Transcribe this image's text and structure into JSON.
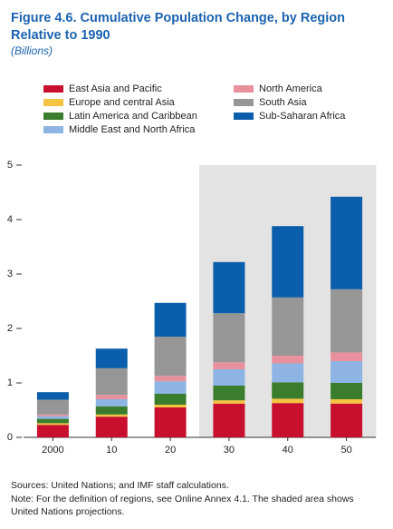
{
  "chart_data": {
    "type": "stacked_bar",
    "title": "Figure 4.6.  Cumulative Population Change, by Region",
    "title_line2": "Relative to 1990",
    "subtitle": "(Billions)",
    "categories": [
      "2000",
      "10",
      "20",
      "30",
      "40",
      "50"
    ],
    "shaded": [
      false,
      false,
      false,
      true,
      true,
      true
    ],
    "series": [
      {
        "name": "East Asia and Pacific",
        "color": "#c8102e",
        "values": [
          0.23,
          0.38,
          0.55,
          0.62,
          0.63,
          0.62
        ]
      },
      {
        "name": "Europe and central Asia",
        "color": "#f5c342",
        "values": [
          0.03,
          0.04,
          0.05,
          0.06,
          0.08,
          0.08
        ]
      },
      {
        "name": "Latin America and Caribbean",
        "color": "#3a7d2c",
        "values": [
          0.08,
          0.15,
          0.2,
          0.27,
          0.3,
          0.3
        ]
      },
      {
        "name": "Middle East and North Africa",
        "color": "#8db4e2",
        "values": [
          0.05,
          0.13,
          0.23,
          0.3,
          0.35,
          0.4
        ]
      },
      {
        "name": "North America",
        "color": "#e8909c",
        "values": [
          0.03,
          0.08,
          0.1,
          0.13,
          0.14,
          0.16
        ]
      },
      {
        "name": "South Asia",
        "color": "#969696",
        "values": [
          0.27,
          0.49,
          0.72,
          0.9,
          1.07,
          1.16
        ]
      },
      {
        "name": "Sub-Saharan Africa",
        "color": "#0a5eab",
        "values": [
          0.14,
          0.36,
          0.62,
          0.94,
          1.31,
          1.7
        ]
      }
    ],
    "ylim": [
      0,
      5
    ],
    "yticks": [
      0,
      1,
      2,
      3,
      4,
      5
    ],
    "source": "Sources: United Nations; and IMF staff calculations.",
    "note_line1": "Note: For the definition of regions, see Online Annex 4.1. The shaded area shows",
    "note_line2": "United Nations projections."
  }
}
